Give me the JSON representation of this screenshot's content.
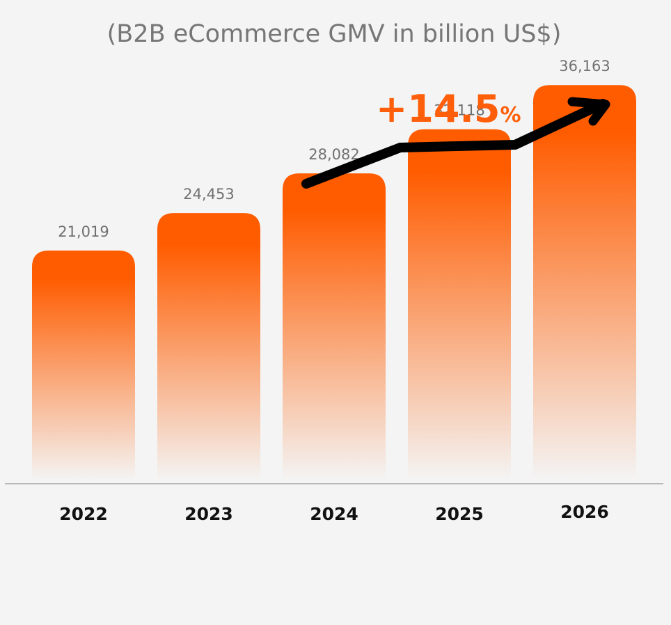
{
  "chart_data": {
    "type": "bar",
    "title": "(B2B eCommerce GMV in billion US$)",
    "categories": [
      "2022",
      "2023",
      "2024",
      "2025",
      "2026"
    ],
    "values": [
      21019,
      24453,
      28082,
      32118,
      36163
    ],
    "value_labels": [
      "21,019",
      "24,453",
      "28,082",
      "32,118",
      "36,163"
    ],
    "annotation": {
      "value": "+14.5",
      "unit": "%"
    },
    "xlabel": "",
    "ylabel": "",
    "grid": false,
    "legend": "none",
    "colors": {
      "bar_top": "#ff5c00",
      "bar_bottom": "#f4f4f4",
      "annotation": "#ff5f0a",
      "arrow": "#000000",
      "baseline": "#b8b8b8"
    }
  }
}
